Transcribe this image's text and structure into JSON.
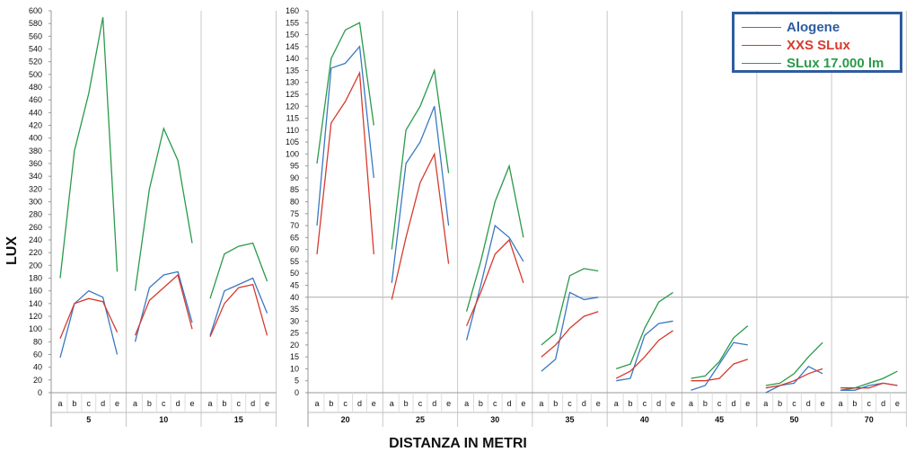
{
  "chart_data": {
    "type": "line",
    "xlabel": "DISTANZA IN METRI",
    "ylabel": "LUX",
    "categories": [
      "a",
      "b",
      "c",
      "d",
      "e"
    ],
    "colors": {
      "alogene": "#3a78c2",
      "xxs": "#d63a2e",
      "slux": "#2a9a4a"
    },
    "legend": {
      "placement": "top-right",
      "entries": [
        {
          "name": "Alogene",
          "color": "#3a78c2"
        },
        {
          "name": "XXS SLux",
          "color": "#d63a2e"
        },
        {
          "name": "SLux 17.000 lm",
          "color": "#2a9a4a"
        }
      ]
    },
    "panels": [
      {
        "ylim": [
          0,
          600
        ],
        "yticks": [
          "0",
          "20",
          "40",
          "60",
          "80",
          "100",
          "120",
          "140",
          "160",
          "180",
          "200",
          "220",
          "240",
          "260",
          "280",
          "300",
          "320",
          "340",
          "360",
          "380",
          "400",
          "420",
          "440",
          "460",
          "480",
          "500",
          "520",
          "540",
          "560",
          "580",
          "600"
        ],
        "groups": [
          {
            "label": "5",
            "alogene": [
              55,
              140,
              160,
              150,
              60
            ],
            "xxs": [
              85,
              140,
              148,
              143,
              95
            ],
            "slux": [
              180,
              380,
              470,
              590,
              190
            ]
          },
          {
            "label": "10",
            "alogene": [
              80,
              165,
              185,
              190,
              110
            ],
            "xxs": [
              90,
              145,
              165,
              185,
              100
            ],
            "slux": [
              160,
              320,
              415,
              365,
              235
            ]
          },
          {
            "label": "15",
            "alogene": [
              90,
              160,
              170,
              180,
              125
            ],
            "xxs": [
              88,
              140,
              165,
              170,
              90
            ],
            "slux": [
              148,
              218,
              230,
              235,
              175
            ]
          }
        ]
      },
      {
        "ylim": [
          0,
          160
        ],
        "yticks": [
          "0",
          "5",
          "10",
          "15",
          "20",
          "25",
          "30",
          "35",
          "40",
          "45",
          "50",
          "55",
          "60",
          "65",
          "70",
          "75",
          "80",
          "85",
          "90",
          "95",
          "100",
          "105",
          "110",
          "115",
          "120",
          "125",
          "130",
          "135",
          "140",
          "145",
          "150",
          "155",
          "160"
        ],
        "groups": [
          {
            "label": "20",
            "alogene": [
              70,
              136,
              138,
              145,
              90
            ],
            "xxs": [
              58,
              113,
              122,
              134,
              58
            ],
            "slux": [
              96,
              140,
              152,
              155,
              112
            ]
          },
          {
            "label": "25",
            "alogene": [
              46,
              96,
              105,
              120,
              70
            ],
            "xxs": [
              39,
              65,
              88,
              100,
              54
            ],
            "slux": [
              60,
              110,
              120,
              135,
              92
            ]
          },
          {
            "label": "30",
            "alogene": [
              22,
              45,
              70,
              65,
              55
            ],
            "xxs": [
              28,
              42,
              58,
              64,
              46
            ],
            "slux": [
              34,
              55,
              80,
              95,
              65
            ]
          },
          {
            "label": "35",
            "alogene": [
              9,
              14,
              42,
              39,
              40
            ],
            "xxs": [
              15,
              20,
              27,
              32,
              34
            ],
            "slux": [
              20,
              25,
              49,
              52,
              51
            ]
          },
          {
            "label": "40",
            "alogene": [
              5,
              6,
              24,
              29,
              30
            ],
            "xxs": [
              6,
              9,
              15,
              22,
              26
            ],
            "slux": [
              10,
              12,
              27,
              38,
              42
            ]
          },
          {
            "label": "45",
            "alogene": [
              1,
              3,
              12,
              21,
              20
            ],
            "xxs": [
              5,
              5,
              6,
              12,
              14
            ],
            "slux": [
              6,
              7,
              13,
              23,
              28
            ]
          },
          {
            "label": "50",
            "alogene": [
              0,
              3,
              4,
              11,
              8
            ],
            "xxs": [
              2,
              3,
              5,
              8,
              10
            ],
            "slux": [
              3,
              4,
              8,
              15,
              21
            ]
          },
          {
            "label": "70",
            "alogene": [
              1,
              1,
              3,
              4,
              3
            ],
            "xxs": [
              2,
              2,
              2,
              4,
              3
            ],
            "slux": [
              1,
              2,
              4,
              6,
              9
            ]
          }
        ]
      }
    ]
  }
}
